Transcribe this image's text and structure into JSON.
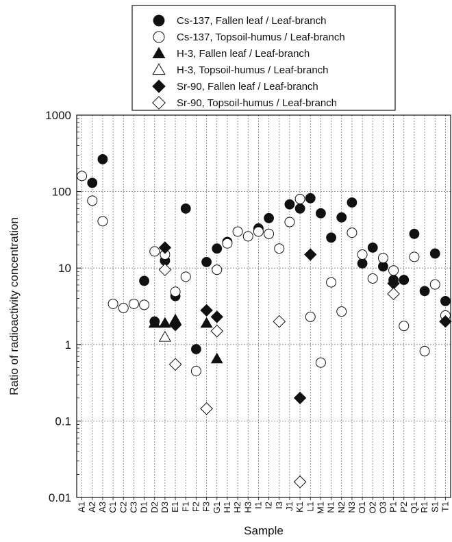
{
  "chart_data": {
    "type": "scatter",
    "xlabel": "Sample",
    "ylabel": "Ratio of radioactivity concentration",
    "yscale": "log",
    "ylim": [
      0.01,
      1000
    ],
    "yticks": [
      "0.01",
      "0.1",
      "1",
      "10",
      "100",
      "1000"
    ],
    "grid": true,
    "legend_position": "top",
    "categories": [
      "A1",
      "A2",
      "A3",
      "C1",
      "C2",
      "C3",
      "D1",
      "D2",
      "D3",
      "E1",
      "F1",
      "F2",
      "F3",
      "G1",
      "H1",
      "H2",
      "H3",
      "I1",
      "I2",
      "I3",
      "J1",
      "K1",
      "L1",
      "M1",
      "N1",
      "N2",
      "N3",
      "O1",
      "O2",
      "O3",
      "P1",
      "P2",
      "Q1",
      "R1",
      "S1",
      "T1"
    ],
    "series": [
      {
        "name": "Cs-137, Fallen leaf / Leaf-branch",
        "marker": "circle",
        "fill": "#111111",
        "points": [
          [
            "A2",
            130
          ],
          [
            "A3",
            265
          ],
          [
            "D1",
            6.8
          ],
          [
            "D2",
            2.0
          ],
          [
            "D3",
            12.5
          ],
          [
            "E1",
            4.3
          ],
          [
            "F1",
            60
          ],
          [
            "F2",
            0.87
          ],
          [
            "F3",
            12
          ],
          [
            "G1",
            18
          ],
          [
            "H1",
            22
          ],
          [
            "I1",
            33
          ],
          [
            "I2",
            45
          ],
          [
            "J1",
            68
          ],
          [
            "K1",
            60
          ],
          [
            "L1",
            82
          ],
          [
            "M1",
            52
          ],
          [
            "N1",
            25
          ],
          [
            "N2",
            46
          ],
          [
            "N3",
            72
          ],
          [
            "O1",
            11.5
          ],
          [
            "O2",
            18.5
          ],
          [
            "O3",
            10.5
          ],
          [
            "P1",
            7
          ],
          [
            "P2",
            7
          ],
          [
            "Q1",
            28
          ],
          [
            "R1",
            5
          ],
          [
            "S1",
            15.5
          ],
          [
            "T1",
            3.7
          ]
        ]
      },
      {
        "name": "Cs-137, Topsoil-humus / Leaf-branch",
        "marker": "circle",
        "fill": "none",
        "points": [
          [
            "A1",
            160
          ],
          [
            "A2",
            76
          ],
          [
            "A3",
            41
          ],
          [
            "C1",
            3.4
          ],
          [
            "C2",
            3.0
          ],
          [
            "C3",
            3.4
          ],
          [
            "D1",
            3.3
          ],
          [
            "D2",
            16.5
          ],
          [
            "D3",
            15
          ],
          [
            "E1",
            4.9
          ],
          [
            "F1",
            7.7
          ],
          [
            "F2",
            0.45
          ],
          [
            "G1",
            9.5
          ],
          [
            "H1",
            21
          ],
          [
            "H2",
            30
          ],
          [
            "H3",
            26
          ],
          [
            "I1",
            30
          ],
          [
            "I2",
            28
          ],
          [
            "I3",
            18
          ],
          [
            "J1",
            40
          ],
          [
            "K1",
            80
          ],
          [
            "L1",
            2.3
          ],
          [
            "M1",
            0.58
          ],
          [
            "N1",
            6.5
          ],
          [
            "N2",
            2.7
          ],
          [
            "N3",
            29
          ],
          [
            "O1",
            15
          ],
          [
            "O2",
            7.3
          ],
          [
            "O3",
            13.5
          ],
          [
            "P1",
            9.3
          ],
          [
            "P2",
            1.75
          ],
          [
            "Q1",
            14
          ],
          [
            "R1",
            0.82
          ],
          [
            "S1",
            6.1
          ],
          [
            "T1",
            2.4
          ]
        ]
      },
      {
        "name": "H-3, Fallen leaf / Leaf-branch",
        "marker": "triangle",
        "fill": "#111111",
        "points": [
          [
            "D2",
            1.9
          ],
          [
            "D3",
            1.9
          ],
          [
            "E1",
            2.1
          ],
          [
            "F3",
            1.9
          ],
          [
            "G1",
            0.65
          ]
        ]
      },
      {
        "name": "H-3, Topsoil-humus / Leaf-branch",
        "marker": "triangle",
        "fill": "none",
        "points": [
          [
            "D3",
            1.25
          ]
        ]
      },
      {
        "name": "Sr-90, Fallen leaf / Leaf-branch",
        "marker": "diamond",
        "fill": "#111111",
        "points": [
          [
            "D3",
            18.5
          ],
          [
            "E1",
            1.8
          ],
          [
            "F3",
            2.8
          ],
          [
            "G1",
            2.3
          ],
          [
            "K1",
            0.2
          ],
          [
            "L1",
            15
          ],
          [
            "P1",
            6.3
          ],
          [
            "T1",
            2.0
          ]
        ]
      },
      {
        "name": "Sr-90, Topsoil-humus / Leaf-branch",
        "marker": "diamond",
        "fill": "none",
        "points": [
          [
            "D3",
            9.5
          ],
          [
            "E1",
            0.55
          ],
          [
            "F3",
            0.145
          ],
          [
            "G1",
            1.5
          ],
          [
            "I3",
            2.0
          ],
          [
            "K1",
            0.016
          ],
          [
            "P1",
            4.6
          ]
        ]
      }
    ]
  }
}
